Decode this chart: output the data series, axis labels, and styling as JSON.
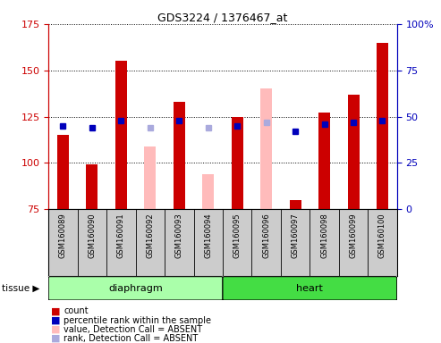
{
  "title": "GDS3224 / 1376467_at",
  "samples": [
    "GSM160089",
    "GSM160090",
    "GSM160091",
    "GSM160092",
    "GSM160093",
    "GSM160094",
    "GSM160095",
    "GSM160096",
    "GSM160097",
    "GSM160098",
    "GSM160099",
    "GSM160100"
  ],
  "tissue_groups": [
    {
      "label": "diaphragm",
      "samples": [
        "GSM160089",
        "GSM160090",
        "GSM160091",
        "GSM160092",
        "GSM160093",
        "GSM160094"
      ]
    },
    {
      "label": "heart",
      "samples": [
        "GSM160095",
        "GSM160096",
        "GSM160097",
        "GSM160098",
        "GSM160099",
        "GSM160100"
      ]
    }
  ],
  "baseline": 75,
  "ylim_left": [
    75,
    175
  ],
  "ylim_right": [
    0,
    100
  ],
  "right_ticks": [
    0,
    25,
    50,
    75,
    100
  ],
  "left_ticks": [
    75,
    100,
    125,
    150,
    175
  ],
  "bar_data": {
    "GSM160089": {
      "type": "present",
      "count": 115,
      "rank_pct": 45
    },
    "GSM160090": {
      "type": "present",
      "count": 99,
      "rank_pct": 44
    },
    "GSM160091": {
      "type": "present",
      "count": 155,
      "rank_pct": 48
    },
    "GSM160092": {
      "type": "absent",
      "value": 109,
      "rank_pct": 44
    },
    "GSM160093": {
      "type": "present",
      "count": 133,
      "rank_pct": 48
    },
    "GSM160094": {
      "type": "absent",
      "value": 94,
      "rank_pct": 44
    },
    "GSM160095": {
      "type": "present",
      "count": 125,
      "rank_pct": 45
    },
    "GSM160096": {
      "type": "absent",
      "value": 140,
      "rank_pct": 47
    },
    "GSM160097": {
      "type": "present",
      "count": 80,
      "rank_pct": 42
    },
    "GSM160098": {
      "type": "present",
      "count": 127,
      "rank_pct": 46
    },
    "GSM160099": {
      "type": "present",
      "count": 137,
      "rank_pct": 47
    },
    "GSM160100": {
      "type": "present",
      "count": 165,
      "rank_pct": 48
    }
  },
  "colors": {
    "red_bar": "#cc0000",
    "blue_square": "#0000bb",
    "pink_bar": "#ffbbbb",
    "light_blue_square": "#aaaadd",
    "axis_left_color": "#cc0000",
    "axis_right_color": "#0000bb",
    "grid_color": "#000000",
    "diaphragm_bg": "#aaffaa",
    "heart_bg": "#44dd44",
    "sample_bg": "#cccccc",
    "plot_bg": "#ffffff",
    "tissue_label_bg": "#aaffaa"
  },
  "legend": [
    {
      "label": "count",
      "color": "#cc0000"
    },
    {
      "label": "percentile rank within the sample",
      "color": "#0000bb"
    },
    {
      "label": "value, Detection Call = ABSENT",
      "color": "#ffbbbb"
    },
    {
      "label": "rank, Detection Call = ABSENT",
      "color": "#aaaadd"
    }
  ],
  "bar_width": 0.4
}
